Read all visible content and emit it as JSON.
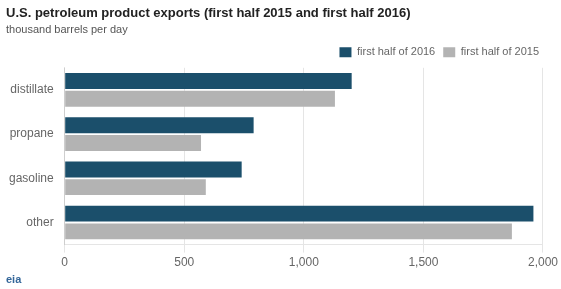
{
  "chart_data": {
    "type": "bar",
    "orientation": "horizontal",
    "title": "U.S. petroleum product exports (first half 2015 and first half 2016)",
    "subtitle": "thousand barrels per day",
    "annotation": "eia",
    "categories": [
      "other",
      "gasoline",
      "propane",
      "distillate"
    ],
    "series": [
      {
        "name": "first half of 2016",
        "color": "#1b4f6b",
        "values": [
          1960,
          740,
          790,
          1200
        ]
      },
      {
        "name": "first half of 2015",
        "color": "#b3b3b3",
        "values": [
          1870,
          590,
          570,
          1130
        ]
      }
    ],
    "xlim": [
      0,
      2000
    ],
    "xticks": [
      0,
      500,
      {
        "value": 1000,
        "label": "1,000"
      },
      {
        "value": 1500,
        "label": "1,500"
      },
      {
        "value": 2000,
        "label": "2,000"
      }
    ],
    "grid": true,
    "legend": "upper right"
  }
}
